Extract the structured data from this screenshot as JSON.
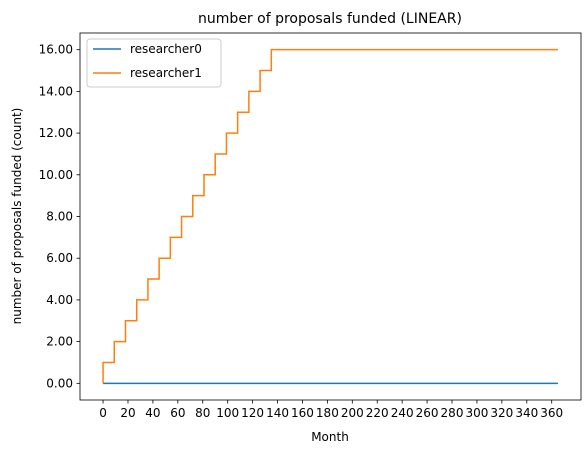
{
  "chart_data": {
    "type": "line",
    "title": "number of proposals funded (LINEAR)",
    "xlabel": "Month",
    "ylabel": "number of proposals funded (count)",
    "xlim": [
      -18.5,
      383.5
    ],
    "ylim": [
      -0.8,
      16.8
    ],
    "x_ticks": [
      0,
      20,
      40,
      60,
      80,
      100,
      120,
      140,
      160,
      180,
      200,
      220,
      240,
      260,
      280,
      300,
      320,
      340,
      360
    ],
    "y_ticks": [
      0,
      2,
      4,
      6,
      8,
      10,
      12,
      14,
      16
    ],
    "y_tick_format": "fixed2",
    "step_style": "post",
    "legend_position": "top-left",
    "grid": false,
    "series": [
      {
        "name": "researcher0",
        "color": "#1f77b4",
        "x": [
          0,
          365
        ],
        "y": [
          0,
          0
        ]
      },
      {
        "name": "researcher1",
        "color": "#ff7f0e",
        "x": [
          0,
          0,
          9,
          18,
          27,
          36,
          45,
          54,
          63,
          72,
          81,
          90,
          99,
          108,
          117,
          126,
          135,
          365
        ],
        "y": [
          0,
          1,
          2,
          3,
          4,
          5,
          6,
          7,
          8,
          9,
          10,
          11,
          12,
          13,
          14,
          15,
          16,
          16
        ]
      }
    ]
  }
}
